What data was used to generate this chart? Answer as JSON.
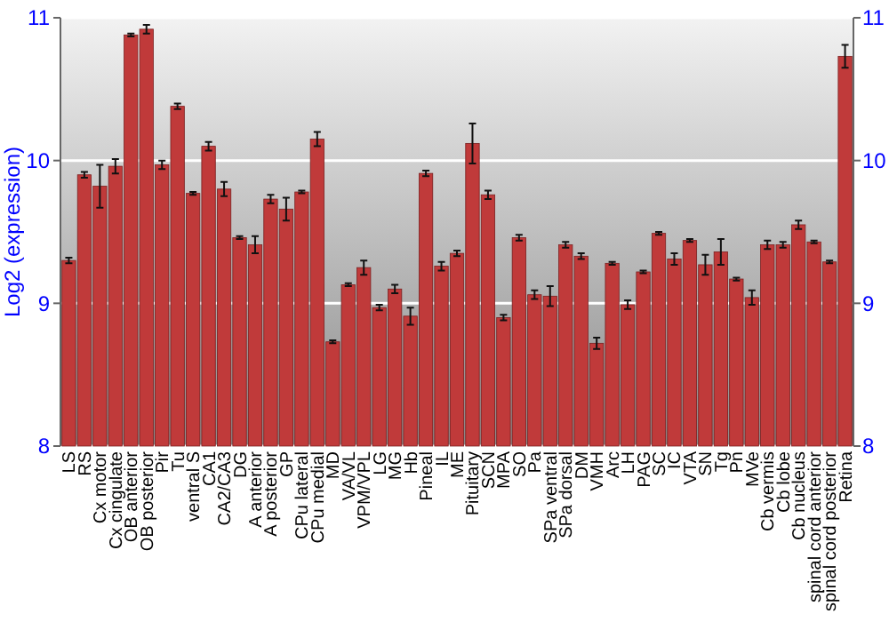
{
  "chart_data": {
    "type": "bar",
    "ylabel": "Log2 (expression)",
    "categories": [
      "LS",
      "RS",
      "Cx motor",
      "Cx cingulate",
      "OB anterior",
      "OB posterior",
      "Pir",
      "Tu",
      "ventral S",
      "CA1",
      "CA2/CA3",
      "DG",
      "A anterior",
      "A posterior",
      "GP",
      "CPu lateral",
      "CPu medial",
      "MD",
      "VA/VL",
      "VPM/VPL",
      "LG",
      "MG",
      "Hb",
      "Pineal",
      "IL",
      "ME",
      "Pituitary",
      "SCN",
      "MPA",
      "SO",
      "Pa",
      "SPa ventral",
      "SPa dorsal",
      "DM",
      "VMH",
      "Arc",
      "LH",
      "PAG",
      "SC",
      "IC",
      "VTA",
      "SN",
      "Tg",
      "Pn",
      "MVe",
      "Cb vermis",
      "Cb lobe",
      "Cb nucleus",
      "spinal cord anterior",
      "spinal cord posterior",
      "Retina"
    ],
    "values": [
      9.3,
      9.9,
      9.82,
      9.96,
      10.88,
      10.92,
      9.97,
      10.38,
      9.77,
      10.1,
      9.8,
      9.46,
      9.41,
      9.73,
      9.66,
      9.78,
      10.15,
      8.73,
      9.13,
      9.25,
      8.97,
      9.1,
      8.91,
      9.91,
      9.26,
      9.35,
      10.12,
      9.76,
      8.9,
      9.46,
      9.06,
      9.05,
      9.41,
      9.33,
      8.72,
      9.28,
      8.99,
      9.22,
      9.49,
      9.31,
      9.44,
      9.27,
      9.36,
      9.17,
      9.04,
      9.41,
      9.41,
      9.55,
      9.43,
      9.29,
      10.73
    ],
    "errors": [
      0.02,
      0.02,
      0.15,
      0.05,
      0.01,
      0.03,
      0.03,
      0.02,
      0.01,
      0.03,
      0.05,
      0.01,
      0.06,
      0.03,
      0.08,
      0.01,
      0.05,
      0.01,
      0.01,
      0.05,
      0.02,
      0.03,
      0.06,
      0.02,
      0.03,
      0.02,
      0.14,
      0.03,
      0.02,
      0.02,
      0.03,
      0.07,
      0.02,
      0.02,
      0.04,
      0.01,
      0.03,
      0.01,
      0.01,
      0.04,
      0.01,
      0.07,
      0.09,
      0.01,
      0.05,
      0.03,
      0.02,
      0.03,
      0.01,
      0.01,
      0.08
    ],
    "color": "#c03a3a",
    "ylim": [
      8,
      11
    ],
    "yticks": [
      8,
      9,
      10,
      11
    ],
    "y2lim": [
      8,
      11
    ],
    "y2ticks": [
      8,
      9,
      10,
      11
    ],
    "grid": "y"
  }
}
